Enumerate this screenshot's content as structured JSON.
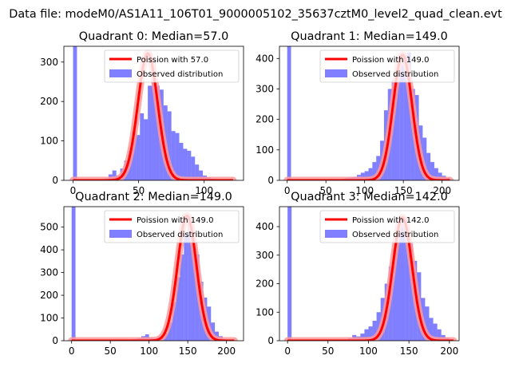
{
  "suptitle": "Data file: modeM0/AS1A11_106T01_9000005102_35637cztM0_level2_quad_clean.evt",
  "colors": {
    "hist": "#0000ff",
    "hist_alpha": 0.5,
    "fit_line": "#ff0000",
    "fit_glow": "#ff9999",
    "axes": "#000000",
    "legend_edge": "#cccccc"
  },
  "legend": {
    "line_prefix": "Poission with",
    "hist_label": "Observed distribution",
    "placement": "upper right"
  },
  "chart_data": [
    {
      "type": "histogram",
      "title": "Quadrant 0: Median=57.0",
      "median": 57.0,
      "legend_line": "Poission with 57.0",
      "legend_hist": "Observed distribution",
      "xlim": [
        -7,
        130
      ],
      "ylim": [
        0,
        340
      ],
      "xticks": [
        0,
        50,
        100
      ],
      "yticks": [
        0,
        100,
        200,
        300
      ],
      "bin_width": 3,
      "bins": [
        [
          0,
          340
        ],
        [
          3,
          0
        ],
        [
          6,
          0
        ],
        [
          9,
          0
        ],
        [
          12,
          0
        ],
        [
          15,
          0
        ],
        [
          18,
          3
        ],
        [
          21,
          3
        ],
        [
          24,
          5
        ],
        [
          27,
          15
        ],
        [
          30,
          25
        ],
        [
          33,
          12
        ],
        [
          36,
          30
        ],
        [
          39,
          50
        ],
        [
          42,
          75
        ],
        [
          45,
          125
        ],
        [
          48,
          115
        ],
        [
          51,
          170
        ],
        [
          54,
          155
        ],
        [
          57,
          240
        ],
        [
          60,
          300
        ],
        [
          63,
          240
        ],
        [
          66,
          230
        ],
        [
          69,
          190
        ],
        [
          72,
          175
        ],
        [
          75,
          125
        ],
        [
          78,
          120
        ],
        [
          81,
          95
        ],
        [
          84,
          80
        ],
        [
          87,
          75
        ],
        [
          90,
          60
        ],
        [
          93,
          40
        ],
        [
          96,
          25
        ],
        [
          99,
          12
        ],
        [
          102,
          8
        ],
        [
          105,
          4
        ],
        [
          108,
          2
        ]
      ],
      "curve_mean": 57.0,
      "curve_peak": 322,
      "curve_sigma": 7.55,
      "curve_xrange": [
        0,
        122
      ]
    },
    {
      "type": "histogram",
      "title": "Quadrant 1: Median=149.0",
      "median": 149.0,
      "legend_line": "Poission with 149.0",
      "legend_hist": "Observed distribution",
      "xlim": [
        -10,
        222
      ],
      "ylim": [
        0,
        440
      ],
      "xticks": [
        0,
        50,
        100,
        150,
        200
      ],
      "yticks": [
        0,
        100,
        200,
        300,
        400
      ],
      "bin_width": 5,
      "bins": [
        [
          0,
          440
        ],
        [
          5,
          0
        ],
        [
          60,
          2
        ],
        [
          65,
          3
        ],
        [
          70,
          5
        ],
        [
          75,
          8
        ],
        [
          80,
          10
        ],
        [
          85,
          12
        ],
        [
          90,
          18
        ],
        [
          95,
          25
        ],
        [
          100,
          30
        ],
        [
          105,
          40
        ],
        [
          110,
          60
        ],
        [
          115,
          80
        ],
        [
          120,
          130
        ],
        [
          125,
          230
        ],
        [
          130,
          300
        ],
        [
          135,
          330
        ],
        [
          140,
          360
        ],
        [
          145,
          380
        ],
        [
          150,
          410
        ],
        [
          155,
          420
        ],
        [
          160,
          300
        ],
        [
          165,
          280
        ],
        [
          170,
          180
        ],
        [
          175,
          140
        ],
        [
          180,
          90
        ],
        [
          185,
          60
        ],
        [
          190,
          40
        ],
        [
          195,
          25
        ],
        [
          200,
          15
        ],
        [
          205,
          8
        ],
        [
          210,
          3
        ]
      ],
      "curve_mean": 149.0,
      "curve_peak": 412,
      "curve_sigma": 12.2,
      "curve_xrange": [
        0,
        210
      ]
    },
    {
      "type": "histogram",
      "title": "Quadrant 2: Median=149.0",
      "median": 149.0,
      "legend_line": "Poission with 149.0",
      "legend_hist": "Observed distribution",
      "xlim": [
        -10,
        222
      ],
      "ylim": [
        0,
        590
      ],
      "xticks": [
        0,
        50,
        100,
        150,
        200
      ],
      "yticks": [
        0,
        100,
        200,
        300,
        400,
        500
      ],
      "bin_width": 5,
      "bins": [
        [
          0,
          590
        ],
        [
          5,
          0
        ],
        [
          60,
          2
        ],
        [
          65,
          3
        ],
        [
          70,
          4
        ],
        [
          75,
          6
        ],
        [
          80,
          8
        ],
        [
          85,
          12
        ],
        [
          90,
          20
        ],
        [
          95,
          28
        ],
        [
          100,
          15
        ],
        [
          105,
          10
        ],
        [
          110,
          12
        ],
        [
          115,
          15
        ],
        [
          120,
          35
        ],
        [
          125,
          80
        ],
        [
          130,
          170
        ],
        [
          135,
          280
        ],
        [
          140,
          380
        ],
        [
          145,
          470
        ],
        [
          150,
          540
        ],
        [
          155,
          420
        ],
        [
          160,
          380
        ],
        [
          165,
          260
        ],
        [
          170,
          190
        ],
        [
          175,
          150
        ],
        [
          180,
          80
        ],
        [
          185,
          40
        ],
        [
          190,
          20
        ],
        [
          195,
          8
        ],
        [
          200,
          4
        ],
        [
          205,
          2
        ]
      ],
      "curve_mean": 149.0,
      "curve_peak": 550,
      "curve_sigma": 12.2,
      "curve_xrange": [
        0,
        210
      ]
    },
    {
      "type": "histogram",
      "title": "Quadrant 3: Median=142.0",
      "median": 142.0,
      "legend_line": "Poission with 142.0",
      "legend_hist": "Observed distribution",
      "xlim": [
        -10,
        212
      ],
      "ylim": [
        0,
        470
      ],
      "xticks": [
        0,
        50,
        100,
        150,
        200
      ],
      "yticks": [
        0,
        100,
        200,
        300,
        400
      ],
      "bin_width": 5,
      "bins": [
        [
          0,
          470
        ],
        [
          5,
          0
        ],
        [
          60,
          2
        ],
        [
          65,
          3
        ],
        [
          70,
          5
        ],
        [
          75,
          10
        ],
        [
          80,
          20
        ],
        [
          85,
          15
        ],
        [
          90,
          25
        ],
        [
          95,
          40
        ],
        [
          100,
          50
        ],
        [
          105,
          70
        ],
        [
          110,
          100
        ],
        [
          115,
          150
        ],
        [
          120,
          200
        ],
        [
          125,
          260
        ],
        [
          130,
          320
        ],
        [
          135,
          400
        ],
        [
          140,
          430
        ],
        [
          145,
          380
        ],
        [
          150,
          340
        ],
        [
          155,
          280
        ],
        [
          160,
          240
        ],
        [
          165,
          150
        ],
        [
          170,
          120
        ],
        [
          175,
          80
        ],
        [
          180,
          60
        ],
        [
          185,
          40
        ],
        [
          190,
          20
        ],
        [
          195,
          10
        ],
        [
          200,
          4
        ]
      ],
      "curve_mean": 142.0,
      "curve_peak": 432,
      "curve_sigma": 11.9,
      "curve_xrange": [
        0,
        205
      ]
    }
  ]
}
